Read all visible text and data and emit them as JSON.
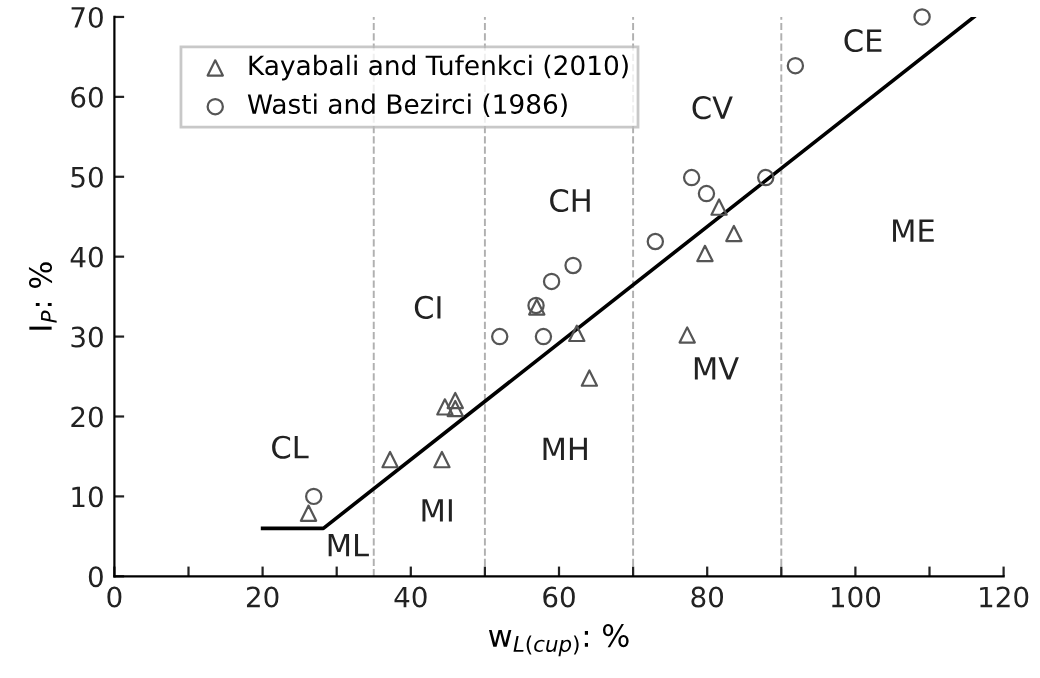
{
  "chart_data": {
    "type": "scatter",
    "xlabel": "w$_{L(cup)}$: %",
    "ylabel": "I$_{P}$: %",
    "xlim": [
      0,
      120
    ],
    "ylim": [
      0,
      70
    ],
    "xticks": [
      0,
      {
        "value": 10,
        "label": null
      },
      20,
      {
        "value": 30,
        "label": null
      },
      40,
      {
        "value": 50,
        "label": null
      },
      60,
      {
        "value": 70,
        "label": null
      },
      80,
      {
        "value": 90,
        "label": null
      },
      100,
      {
        "value": 110,
        "label": null
      },
      120
    ],
    "yticks": [
      0,
      10,
      20,
      30,
      40,
      50,
      60,
      70
    ],
    "grid": false,
    "legend": "top left",
    "series": [
      {
        "name": "Kayabali and Tufenkci (2010)",
        "color": "#555555",
        "marker": "triangle",
        "x": [
          26.2,
          37.2,
          44.2,
          44.6,
          46,
          46,
          57,
          62.4,
          64.1,
          77.3,
          79.7,
          81.6,
          83.6
        ],
        "values": [
          7.9,
          14.6,
          14.6,
          21.2,
          22,
          21,
          33.7,
          30.4,
          24.8,
          30.2,
          40.4,
          46.2,
          42.9
        ]
      },
      {
        "name": "Wasti and Bezirci (1986)",
        "color": "#555555",
        "marker": "circle",
        "x": [
          26.9,
          52,
          56.9,
          57.9,
          59,
          61.9,
          73,
          77.9,
          79.9,
          87.9,
          91.9,
          109
        ],
        "values": [
          10,
          30,
          33.9,
          30,
          36.9,
          38.9,
          41.9,
          49.9,
          47.9,
          49.9,
          63.9,
          70
        ]
      },
      {
        "type": "line",
        "color": "#000000",
        "marker": "none",
        "line_style": "solid",
        "x": [
          20,
          28.2,
          116
        ],
        "values": [
          6,
          6,
          70
        ]
      }
    ],
    "ref_lines": [
      {
        "axis": "x",
        "value": 35,
        "color": "#b0b0b0",
        "line_style": "dashed"
      },
      {
        "axis": "x",
        "value": 50,
        "color": "#b0b0b0",
        "line_style": "dashed"
      },
      {
        "axis": "x",
        "value": 70,
        "color": "#b0b0b0",
        "line_style": "dashed"
      },
      {
        "axis": "x",
        "value": 90,
        "color": "#b0b0b0",
        "line_style": "dashed"
      }
    ],
    "annotations": [
      "CL",
      "ML",
      "CI",
      "MI",
      "CH",
      "MH",
      "CV",
      "MV",
      "CE",
      "ME"
    ]
  }
}
